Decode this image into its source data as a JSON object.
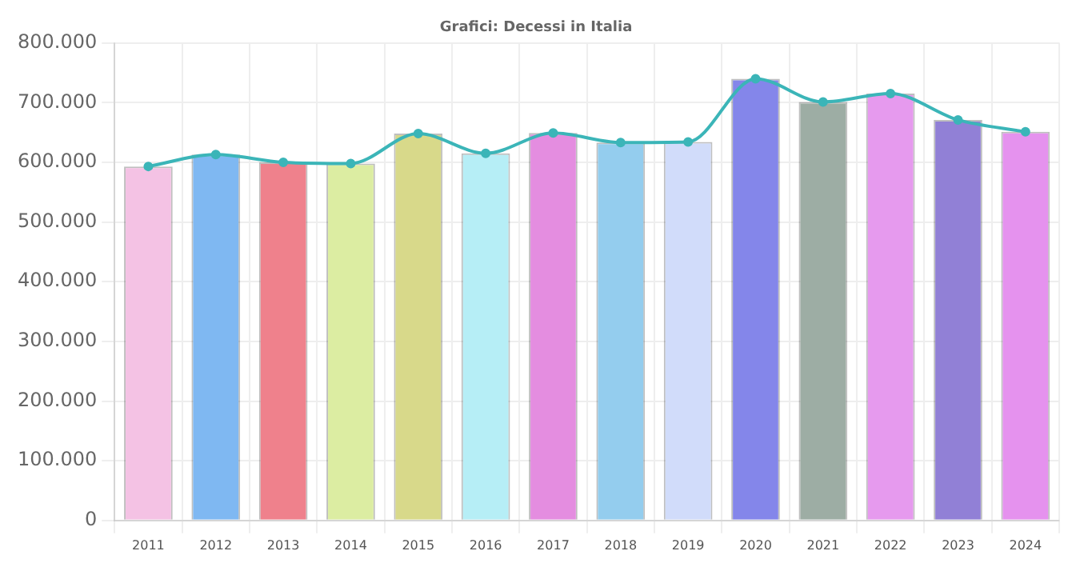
{
  "chart_data": {
    "type": "bar",
    "title": "Grafici: Decessi in Italia",
    "categories": [
      "2011",
      "2012",
      "2013",
      "2014",
      "2015",
      "2016",
      "2017",
      "2018",
      "2019",
      "2020",
      "2021",
      "2022",
      "2023",
      "2024"
    ],
    "series": [
      {
        "values": [
          593000,
          613000,
          600000,
          598000,
          648000,
          615000,
          649000,
          633000,
          634000,
          740000,
          701000,
          715000,
          671000,
          651000
        ],
        "colors": [
          "#f4c2e4",
          "#7fb8f2",
          "#ef818c",
          "#dcedA2",
          "#d8d98a",
          "#b6eef6",
          "#e48de0",
          "#94cdee",
          "#d1dcfa",
          "#8486ea",
          "#9dada4",
          "#e69aee",
          "#9180d6",
          "#e592ee"
        ]
      },
      {
        "type": "line",
        "color": "#3bb5b8",
        "marker": "circle",
        "values": [
          593000,
          613000,
          600000,
          598000,
          648000,
          615000,
          649000,
          633000,
          634000,
          740000,
          701000,
          715000,
          671000,
          651000
        ]
      }
    ],
    "ylim": [
      0,
      800000
    ],
    "yticks": [
      {
        "value": 0,
        "label": "0"
      },
      {
        "value": 100000,
        "label": "100.000"
      },
      {
        "value": 200000,
        "label": "200.000"
      },
      {
        "value": 300000,
        "label": "300.000"
      },
      {
        "value": 400000,
        "label": "400.000"
      },
      {
        "value": 500000,
        "label": "500.000"
      },
      {
        "value": 600000,
        "label": "600.000"
      },
      {
        "value": 700000,
        "label": "700.000"
      },
      {
        "value": 800000,
        "label": "800.000"
      }
    ],
    "grid": true
  }
}
